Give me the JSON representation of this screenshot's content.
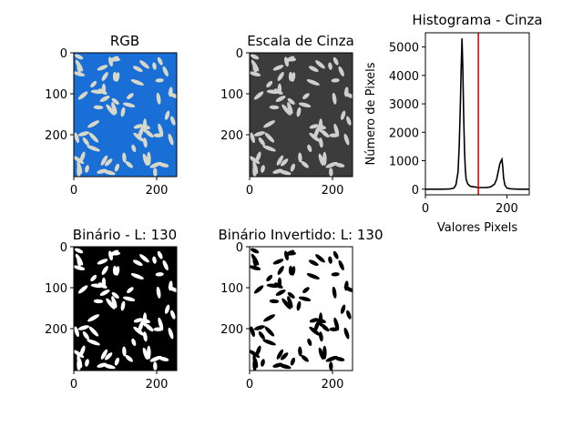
{
  "chart_data": [
    {
      "type": "image",
      "title": "RGB",
      "xticks": [
        "0",
        "200"
      ],
      "yticks": [
        "0",
        "100",
        "200"
      ],
      "xlim": [
        0,
        250
      ],
      "ylim": [
        0,
        300
      ],
      "background_color": "#1a6fd6",
      "grain_color": "#d8d8c8"
    },
    {
      "type": "image",
      "title": "Escala de Cinza",
      "xticks": [
        "0",
        "200"
      ],
      "yticks": [
        "0",
        "100",
        "200"
      ],
      "xlim": [
        0,
        250
      ],
      "ylim": [
        0,
        300
      ],
      "background_color": "#3c3c3c",
      "grain_color": "#cfcfcf"
    },
    {
      "type": "line",
      "title": "Histograma - Cinza",
      "xlabel": "Valores Pixels",
      "ylabel": "Número de Pixels",
      "xticks": [
        "0",
        "200"
      ],
      "yticks": [
        "0",
        "1000",
        "2000",
        "3000",
        "4000",
        "5000"
      ],
      "xlim": [
        0,
        255
      ],
      "ylim": [
        -200,
        5500
      ],
      "threshold": 130,
      "threshold_color": "#cc0000",
      "line_color": "#000000",
      "x": [
        0,
        20,
        40,
        60,
        70,
        75,
        80,
        83,
        86,
        88,
        90,
        92,
        94,
        96,
        98,
        100,
        104,
        110,
        120,
        130,
        140,
        150,
        160,
        170,
        175,
        180,
        183,
        186,
        188,
        190,
        192,
        195,
        200,
        210,
        230,
        255
      ],
      "y": [
        0,
        0,
        0,
        5,
        40,
        150,
        600,
        1500,
        3000,
        4300,
        5300,
        4200,
        2600,
        1400,
        700,
        350,
        180,
        100,
        80,
        60,
        55,
        60,
        80,
        180,
        350,
        700,
        900,
        1000,
        1050,
        800,
        400,
        150,
        40,
        10,
        0,
        0
      ]
    },
    {
      "type": "image",
      "title": "Binário - L: 130",
      "xticks": [
        "0",
        "200"
      ],
      "yticks": [
        "0",
        "100",
        "200"
      ],
      "xlim": [
        0,
        250
      ],
      "ylim": [
        0,
        300
      ],
      "background_color": "#000000",
      "grain_color": "#ffffff"
    },
    {
      "type": "image",
      "title": "Binário Invertido: L: 130",
      "xticks": [
        "0",
        "200"
      ],
      "yticks": [
        "0",
        "100",
        "200"
      ],
      "xlim": [
        0,
        250
      ],
      "ylim": [
        0,
        300
      ],
      "background_color": "#ffffff",
      "grain_color": "#000000"
    }
  ]
}
